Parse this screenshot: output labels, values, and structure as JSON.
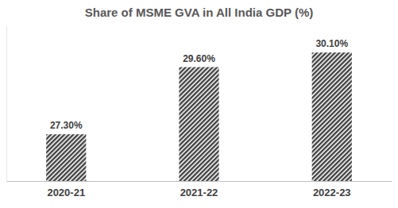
{
  "chart_data": {
    "type": "bar",
    "title": "Share of MSME GVA in All India GDP (%)",
    "categories": [
      "2020-21",
      "2021-22",
      "2022-23"
    ],
    "values": [
      27.3,
      29.6,
      30.1
    ],
    "value_labels": [
      "27.30%",
      "29.60%",
      "30.10%"
    ],
    "data_labels": true,
    "color": "#404040",
    "ylim": [
      25.7,
      31
    ],
    "yticks": [],
    "tick_labels": "x",
    "grid": false
  }
}
